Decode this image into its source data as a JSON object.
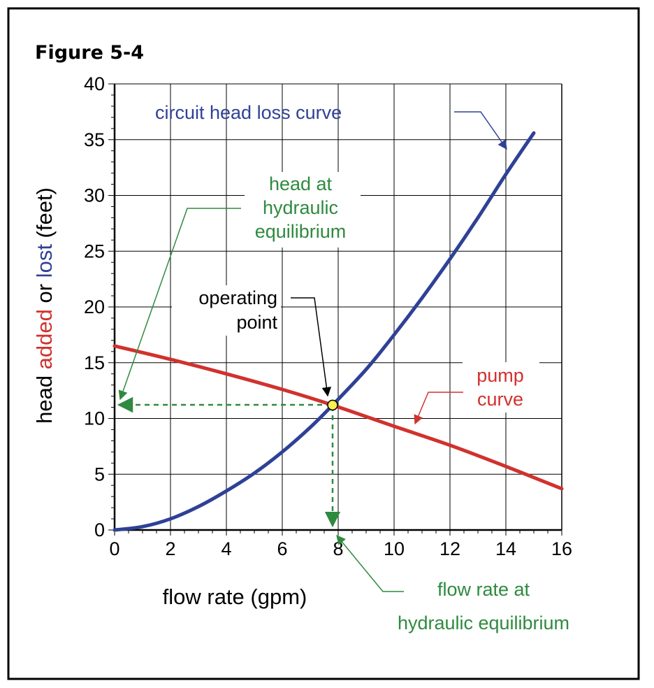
{
  "figure_label": "Figure 5-4",
  "colors": {
    "head_loss_curve": "#2f4196",
    "pump_curve": "#d0322e",
    "annotation_green": "#2f8a3f",
    "operating_point_fill": "#ffef50",
    "grid": "#000000"
  },
  "annotations": {
    "circuit_curve": "circuit head loss curve",
    "head_eq_line1": "head at",
    "head_eq_line2": "hydraulic",
    "head_eq_line3": "equilibrium",
    "op_line1": "operating",
    "op_line2": "point",
    "pump_line1": "pump",
    "pump_line2": "curve",
    "flow_eq_line1": "flow rate at",
    "flow_eq_line2": "hydraulic equilibrium"
  },
  "chart_data": {
    "type": "line",
    "xlabel": "flow rate (gpm)",
    "ylabel_parts": [
      {
        "text": "head ",
        "color": "#000000"
      },
      {
        "text": "added",
        "color": "#d0322e"
      },
      {
        "text": " or ",
        "color": "#000000"
      },
      {
        "text": "lost",
        "color": "#2f4196"
      },
      {
        "text": " (feet)",
        "color": "#000000"
      }
    ],
    "xlim": [
      0,
      16
    ],
    "ylim": [
      0,
      40
    ],
    "x_ticks": [
      0,
      2,
      4,
      6,
      8,
      10,
      12,
      14,
      16
    ],
    "y_ticks": [
      0,
      5,
      10,
      15,
      20,
      25,
      30,
      35,
      40
    ],
    "grid": true,
    "series": [
      {
        "key": "head_loss",
        "color": "#2f4196",
        "x": [
          0,
          1,
          2,
          3,
          4,
          5,
          6,
          7,
          7.8,
          9,
          10,
          11,
          12,
          13,
          14,
          15
        ],
        "y": [
          0,
          0.3,
          1.0,
          2.1,
          3.5,
          5.1,
          7.0,
          9.2,
          11.2,
          14.4,
          17.5,
          20.8,
          24.3,
          28.0,
          31.9,
          35.6
        ]
      },
      {
        "key": "pump",
        "color": "#d0322e",
        "x": [
          0,
          2,
          4,
          6,
          7.8,
          10,
          12,
          14,
          16
        ],
        "y": [
          16.5,
          15.3,
          14.0,
          12.6,
          11.2,
          9.3,
          7.6,
          5.7,
          3.7
        ]
      }
    ],
    "operating_point": {
      "x": 7.8,
      "y": 11.2
    }
  }
}
